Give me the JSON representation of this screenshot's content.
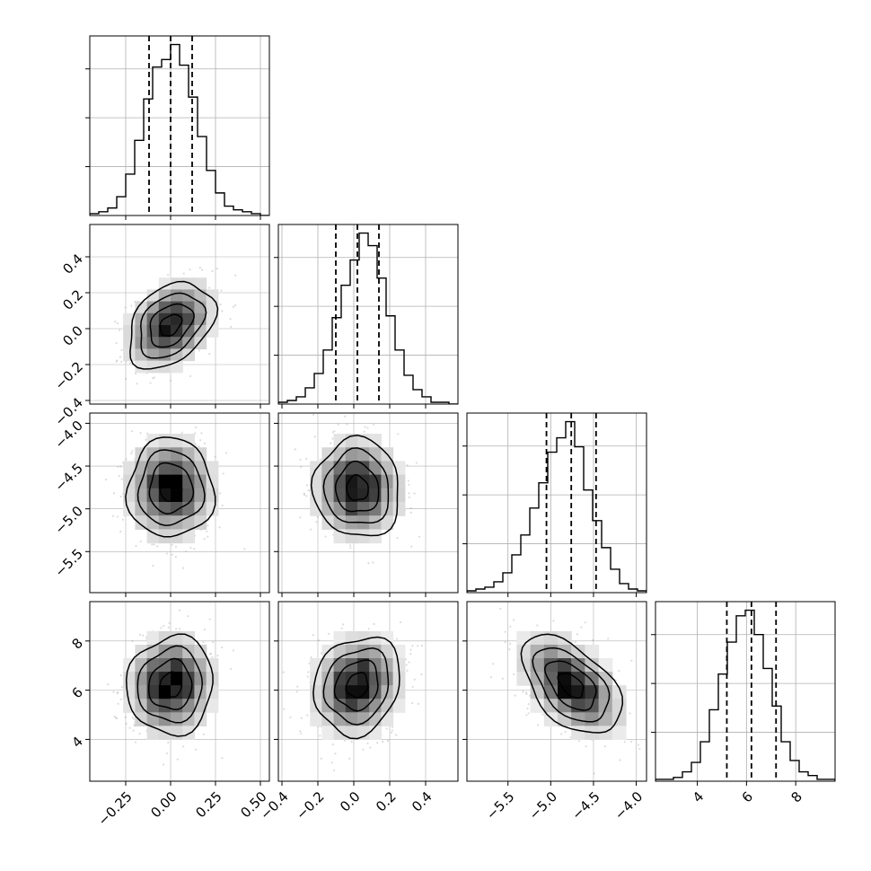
{
  "chart_data": {
    "type": "corner",
    "dim": 4,
    "grid": true,
    "colors": {
      "line": "#000000",
      "grid": "#b0b0b0",
      "scatter": "#9a9a9a"
    },
    "params": [
      {
        "range": [
          -0.45,
          0.55
        ],
        "ticks": [
          -0.25,
          0.0,
          0.25,
          0.5
        ],
        "tick_labels": [
          "−0.25",
          "0.00",
          "0.25",
          "0.50"
        ],
        "hist": [
          1,
          2,
          4,
          10,
          22,
          40,
          62,
          79,
          83,
          91,
          80,
          63,
          42,
          24,
          12,
          5,
          3,
          2,
          1,
          0
        ],
        "quantiles": [
          -0.12,
          0.0,
          0.12
        ]
      },
      {
        "range": [
          -0.42,
          0.58
        ],
        "ticks": [
          -0.4,
          -0.2,
          0.0,
          0.2,
          0.4
        ],
        "tick_labels": [
          "−0.4",
          "−0.2",
          "0.0",
          "0.2",
          "0.4"
        ],
        "hist": [
          1,
          2,
          4,
          9,
          17,
          30,
          48,
          66,
          80,
          95,
          88,
          70,
          49,
          30,
          16,
          8,
          4,
          1,
          1,
          0
        ],
        "quantiles": [
          -0.1,
          0.02,
          0.14
        ]
      },
      {
        "range": [
          -5.98,
          -3.88
        ],
        "ticks": [
          -5.5,
          -5.0,
          -4.5,
          -4.0
        ],
        "tick_labels": [
          "−5.5",
          "−5.0",
          "−4.5",
          "−4.0"
        ],
        "hist": [
          1,
          2,
          3,
          6,
          11,
          21,
          32,
          47,
          61,
          78,
          86,
          95,
          81,
          57,
          40,
          25,
          13,
          5,
          2,
          1
        ],
        "quantiles": [
          -5.05,
          -4.76,
          -4.47
        ]
      },
      {
        "range": [
          2.3,
          9.6
        ],
        "ticks": [
          4,
          6,
          8
        ],
        "tick_labels": [
          "4",
          "6",
          "8"
        ],
        "hist": [
          1,
          1,
          2,
          5,
          10,
          21,
          38,
          57,
          74,
          88,
          91,
          78,
          60,
          40,
          21,
          11,
          5,
          3,
          1,
          1
        ],
        "quantiles": [
          5.2,
          6.2,
          7.2
        ]
      }
    ],
    "pairs": [
      {
        "row": 1,
        "col": 0,
        "mean": [
          0.0,
          0.02
        ],
        "sd": [
          0.12,
          0.12
        ],
        "corr": 0.35
      },
      {
        "row": 2,
        "col": 0,
        "mean": [
          0.0,
          -4.76
        ],
        "sd": [
          0.12,
          0.29
        ],
        "corr": 0.0
      },
      {
        "row": 2,
        "col": 1,
        "mean": [
          0.02,
          -4.76
        ],
        "sd": [
          0.12,
          0.29
        ],
        "corr": -0.05
      },
      {
        "row": 3,
        "col": 0,
        "mean": [
          0.0,
          6.2
        ],
        "sd": [
          0.12,
          1.0
        ],
        "corr": 0.05
      },
      {
        "row": 3,
        "col": 1,
        "mean": [
          0.02,
          6.2
        ],
        "sd": [
          0.12,
          1.0
        ],
        "corr": 0.15
      },
      {
        "row": 3,
        "col": 2,
        "mean": [
          -4.76,
          6.2
        ],
        "sd": [
          0.29,
          1.0
        ],
        "corr": -0.5
      }
    ]
  }
}
